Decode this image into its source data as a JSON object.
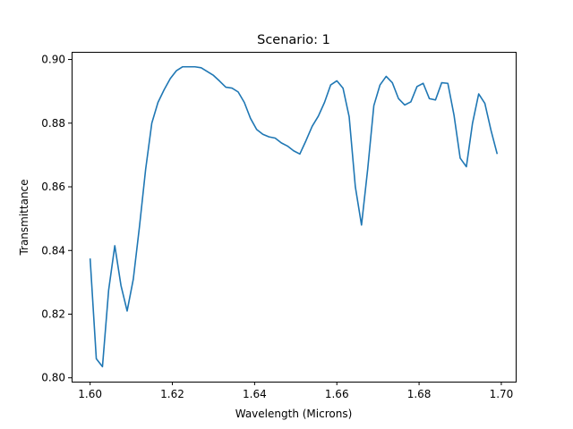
{
  "chart_data": {
    "type": "line",
    "title": "Scenario: 1",
    "xlabel": "Wavelength (Microns)",
    "ylabel": "Transmittance",
    "xlim": [
      1.5955,
      1.7035
    ],
    "ylim": [
      0.7988,
      0.9024
    ],
    "grid": false,
    "xticks": [
      {
        "value": 1.6,
        "label": "1.60"
      },
      {
        "value": 1.62,
        "label": "1.62"
      },
      {
        "value": 1.64,
        "label": "1.64"
      },
      {
        "value": 1.66,
        "label": "1.66"
      },
      {
        "value": 1.68,
        "label": "1.68"
      },
      {
        "value": 1.7,
        "label": "1.70"
      }
    ],
    "yticks": [
      {
        "value": 0.8,
        "label": "0.80"
      },
      {
        "value": 0.82,
        "label": "0.82"
      },
      {
        "value": 0.84,
        "label": "0.84"
      },
      {
        "value": 0.86,
        "label": "0.86"
      },
      {
        "value": 0.88,
        "label": "0.88"
      },
      {
        "value": 0.9,
        "label": "0.90"
      }
    ],
    "series": [
      {
        "color": "#1f77b4",
        "x": [
          1.6,
          1.6015,
          1.603,
          1.6045,
          1.606,
          1.6075,
          1.609,
          1.6105,
          1.612,
          1.6135,
          1.615,
          1.6165,
          1.618,
          1.6195,
          1.621,
          1.6225,
          1.624,
          1.6255,
          1.627,
          1.6285,
          1.63,
          1.6315,
          1.633,
          1.6345,
          1.636,
          1.6375,
          1.639,
          1.6405,
          1.642,
          1.6435,
          1.645,
          1.6465,
          1.648,
          1.6495,
          1.651,
          1.6525,
          1.654,
          1.6555,
          1.657,
          1.6585,
          1.66,
          1.6615,
          1.663,
          1.6645,
          1.666,
          1.6675,
          1.669,
          1.6705,
          1.672,
          1.6735,
          1.675,
          1.6765,
          1.678,
          1.6795,
          1.681,
          1.6825,
          1.684,
          1.6855,
          1.687,
          1.6885,
          1.69,
          1.6915,
          1.693,
          1.6945,
          1.696,
          1.6975,
          1.699
        ],
        "y": [
          0.8375,
          0.806,
          0.8035,
          0.8275,
          0.8415,
          0.829,
          0.821,
          0.831,
          0.8475,
          0.8655,
          0.88,
          0.8865,
          0.8905,
          0.894,
          0.8965,
          0.8977,
          0.8977,
          0.8977,
          0.8974,
          0.8962,
          0.895,
          0.8932,
          0.8913,
          0.891,
          0.8898,
          0.8865,
          0.8815,
          0.878,
          0.8765,
          0.8757,
          0.8753,
          0.8738,
          0.8728,
          0.8713,
          0.8703,
          0.8745,
          0.879,
          0.8822,
          0.8865,
          0.892,
          0.8933,
          0.891,
          0.882,
          0.86,
          0.848,
          0.8655,
          0.8855,
          0.892,
          0.8947,
          0.8927,
          0.8877,
          0.8857,
          0.8867,
          0.8915,
          0.8925,
          0.8877,
          0.8873,
          0.8927,
          0.8925,
          0.8825,
          0.869,
          0.8663,
          0.88,
          0.8892,
          0.8862,
          0.8777,
          0.8703
        ]
      }
    ]
  }
}
